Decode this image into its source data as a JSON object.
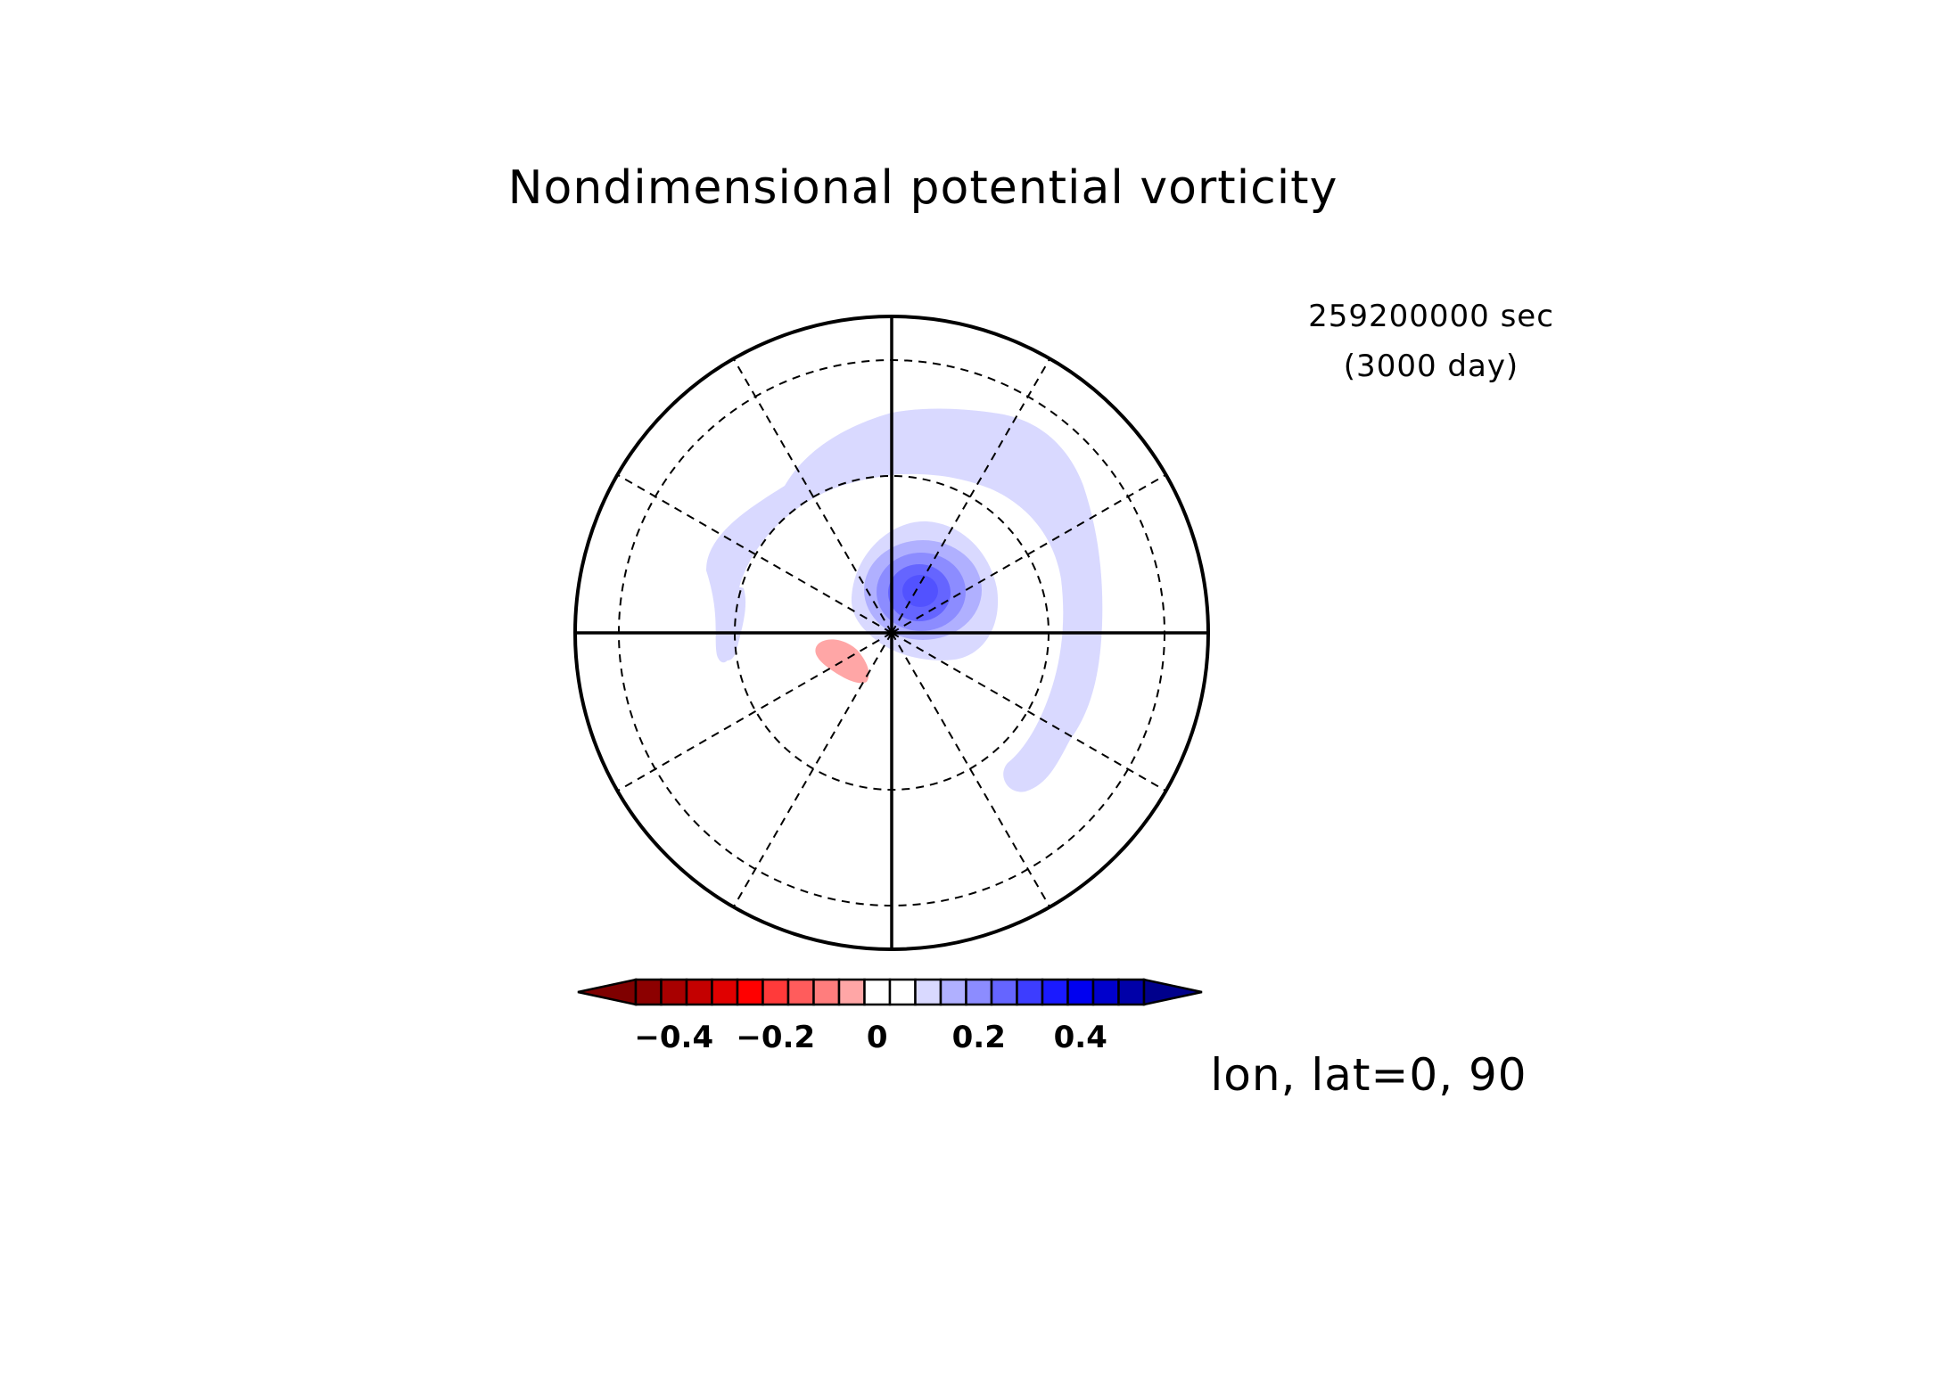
{
  "chart_data": {
    "type": "heatmap",
    "projection": "polar-stereographic",
    "title": "Nondimensional potential vorticity",
    "time_seconds": "259200000 sec",
    "time_days": "(3000 day)",
    "axis_label": "lon, lat=0, 90",
    "grid": true,
    "colorbar": {
      "orientation": "horizontal",
      "placement": "bottom",
      "levels": [
        -0.5,
        -0.45,
        -0.4,
        -0.35,
        -0.3,
        -0.25,
        -0.2,
        -0.15,
        -0.1,
        -0.05,
        0,
        0.05,
        0.1,
        0.15,
        0.2,
        0.25,
        0.3,
        0.35,
        0.4,
        0.45,
        0.5
      ],
      "colors": [
        "#7f0000",
        "#8c0000",
        "#a80000",
        "#c40000",
        "#e00000",
        "#ff0000",
        "#ff3a3a",
        "#ff5c5c",
        "#ff7d7d",
        "#ffa6a6",
        "#ffffff",
        "#ffffff",
        "#d9d9ff",
        "#b0b0ff",
        "#8c8cff",
        "#6565ff",
        "#3d3dff",
        "#1a1aff",
        "#0000f0",
        "#0000cc",
        "#0000a8",
        "#00008c"
      ],
      "tick_values": [
        -0.4,
        -0.2,
        0,
        0.2,
        0.4
      ],
      "tick_labels": [
        "−0.4",
        "−0.2",
        "0",
        "0.2",
        "0.4"
      ]
    },
    "features": [
      {
        "name": "positive vortex core",
        "max_value": 0.35
      },
      {
        "name": "positive spiral band",
        "value": 0.05
      },
      {
        "name": "negative patch",
        "value": -0.05
      }
    ]
  }
}
